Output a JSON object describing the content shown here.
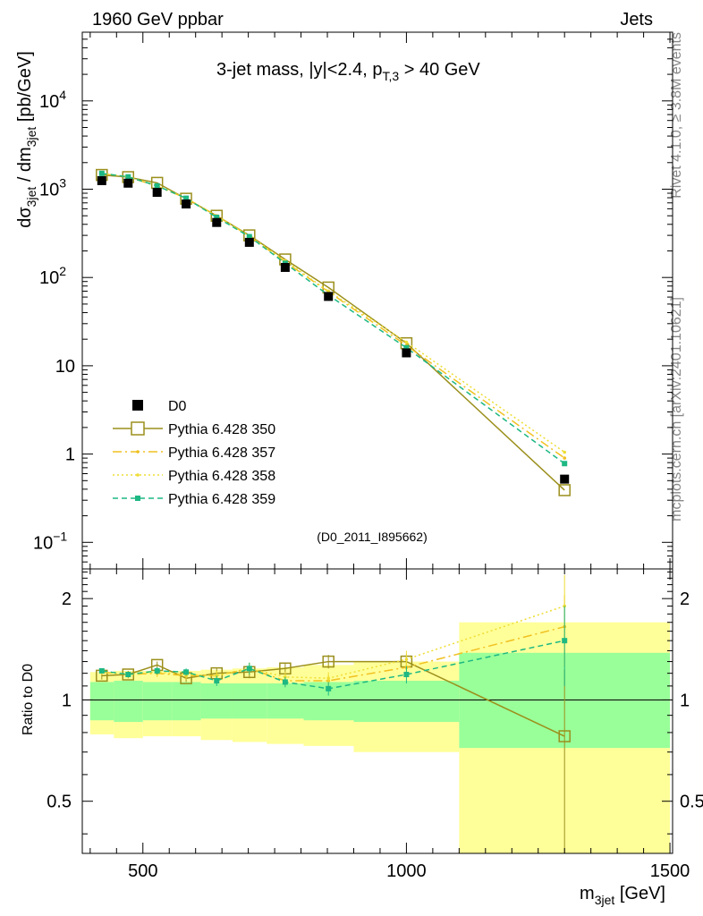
{
  "header": {
    "left": "1960 GeV ppbar",
    "right": "Jets"
  },
  "side_labels": {
    "rivet": "Rivet 4.1.0, ≥ 3.8M events",
    "mcplots": "mcplots.cern.ch [arXiv:2401.10621]"
  },
  "chart_data": {
    "type": "scatter",
    "title": {
      "main": "3-jet mass, |y|<2.4, p",
      "sub": "T,3",
      "tail": " > 40 GeV"
    },
    "analysis_id": "(D0_2011_I895662)",
    "xlabel": {
      "main": "m",
      "sub": "3jet",
      "tail": " [GeV]"
    },
    "ylabel": {
      "pre": "dσ",
      "sub1": "3jet",
      "mid": " / dm",
      "sub2": "3jet",
      "tail": " [pb/GeV]"
    },
    "ratio_ylabel": "Ratio to D0",
    "xlim": [
      385,
      1505
    ],
    "ylim": [
      0.05,
      60000
    ],
    "ratio_ylim": [
      0.35,
      2.45
    ],
    "x_ticks": [
      500,
      1000,
      1500
    ],
    "x_tick_labels": [
      "500",
      "1000",
      "1500"
    ],
    "y_ticks": [
      {
        "value": 0.1,
        "label": "10",
        "exp": "−1"
      },
      {
        "value": 1,
        "label": "1",
        "exp": ""
      },
      {
        "value": 10,
        "label": "10",
        "exp": ""
      },
      {
        "value": 100,
        "label": "10",
        "exp": "2"
      },
      {
        "value": 1000,
        "label": "10",
        "exp": "3"
      },
      {
        "value": 10000,
        "label": "10",
        "exp": "4"
      }
    ],
    "ratio_ticks": [
      {
        "value": 0.5,
        "label": "0.5"
      },
      {
        "value": 1,
        "label": "1"
      },
      {
        "value": 2,
        "label": "2"
      }
    ],
    "bins": [
      {
        "lo": 400,
        "hi": 445
      },
      {
        "lo": 445,
        "hi": 500
      },
      {
        "lo": 500,
        "hi": 555
      },
      {
        "lo": 555,
        "hi": 610
      },
      {
        "lo": 610,
        "hi": 670
      },
      {
        "lo": 670,
        "hi": 735
      },
      {
        "lo": 735,
        "hi": 805
      },
      {
        "lo": 805,
        "hi": 900
      },
      {
        "lo": 900,
        "hi": 1100
      },
      {
        "lo": 1100,
        "hi": 1500
      }
    ],
    "x": [
      422,
      472,
      527,
      582,
      640,
      702,
      770,
      852,
      1000,
      1300
    ],
    "data": {
      "name": "D0",
      "values": [
        1250,
        1170,
        920,
        680,
        420,
        250,
        130,
        61,
        14,
        0.52
      ],
      "stat_band_lo": [
        0.87,
        0.86,
        0.87,
        0.87,
        0.88,
        0.88,
        0.88,
        0.87,
        0.86,
        0.72
      ],
      "stat_band_hi": [
        1.13,
        1.14,
        1.13,
        1.13,
        1.12,
        1.12,
        1.12,
        1.13,
        1.14,
        1.38
      ],
      "tot_band_lo": [
        0.79,
        0.77,
        0.78,
        0.78,
        0.76,
        0.75,
        0.74,
        0.73,
        0.7,
        0.35
      ],
      "tot_band_hi": [
        1.21,
        1.22,
        1.22,
        1.22,
        1.23,
        1.24,
        1.25,
        1.27,
        1.3,
        1.7
      ]
    },
    "series": [
      {
        "name": "Pythia 6.428 350",
        "color": "#9b8f1c",
        "values": [
          1450,
          1370,
          1180,
          780,
          500,
          300,
          160,
          77,
          18,
          0.39
        ],
        "ratio": [
          1.18,
          1.19,
          1.27,
          1.16,
          1.2,
          1.21,
          1.24,
          1.3,
          1.3,
          0.78
        ],
        "ratio_err": [
          0.03,
          0.03,
          0.03,
          0.03,
          0.04,
          0.05,
          0.05,
          0.06,
          0.07,
          0.45
        ]
      },
      {
        "name": "Pythia 6.428 357",
        "color": "#f0c020",
        "values": [
          1500,
          1380,
          1080,
          790,
          500,
          295,
          150,
          69,
          17,
          0.9
        ],
        "ratio": [
          1.21,
          1.19,
          1.2,
          1.18,
          1.18,
          1.24,
          1.14,
          1.14,
          1.25,
          1.65
        ],
        "ratio_err": [
          0.02,
          0.02,
          0.03,
          0.03,
          0.04,
          0.05,
          0.04,
          0.05,
          0.07,
          0.4
        ]
      },
      {
        "name": "Pythia 6.428 358",
        "color": "#eedd33",
        "values": [
          1510,
          1390,
          1100,
          795,
          495,
          295,
          155,
          70,
          18.5,
          1.05
        ],
        "ratio": [
          1.21,
          1.19,
          1.21,
          1.19,
          1.18,
          1.24,
          1.17,
          1.16,
          1.32,
          1.9
        ],
        "ratio_err": [
          0.02,
          0.02,
          0.03,
          0.03,
          0.04,
          0.05,
          0.04,
          0.05,
          0.08,
          0.45
        ]
      },
      {
        "name": "Pythia 6.428 359",
        "color": "#1db883",
        "values": [
          1510,
          1380,
          1090,
          790,
          480,
          290,
          145,
          63,
          16,
          0.78
        ],
        "ratio": [
          1.22,
          1.19,
          1.22,
          1.21,
          1.14,
          1.24,
          1.13,
          1.08,
          1.19,
          1.5
        ],
        "ratio_err": [
          0.02,
          0.02,
          0.03,
          0.03,
          0.04,
          0.05,
          0.04,
          0.05,
          0.07,
          0.4
        ]
      }
    ],
    "colors": {
      "data": "#000000",
      "stat_band": "#99ff99",
      "tot_band": "#ffff99",
      "analysis_id": "#888888"
    }
  }
}
